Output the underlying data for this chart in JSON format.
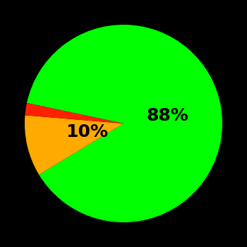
{
  "slices": [
    88,
    10,
    2
  ],
  "colors": [
    "#00ff00",
    "#ffaa00",
    "#ff2000"
  ],
  "labels": [
    "88%",
    "10%",
    ""
  ],
  "background_color": "#000000",
  "label_fontsize": 18,
  "label_fontweight": "bold",
  "startangle": 168,
  "figsize": [
    3.5,
    3.5
  ],
  "dpi": 100,
  "green_label_r": 0.45,
  "yellow_label_r": 0.38
}
